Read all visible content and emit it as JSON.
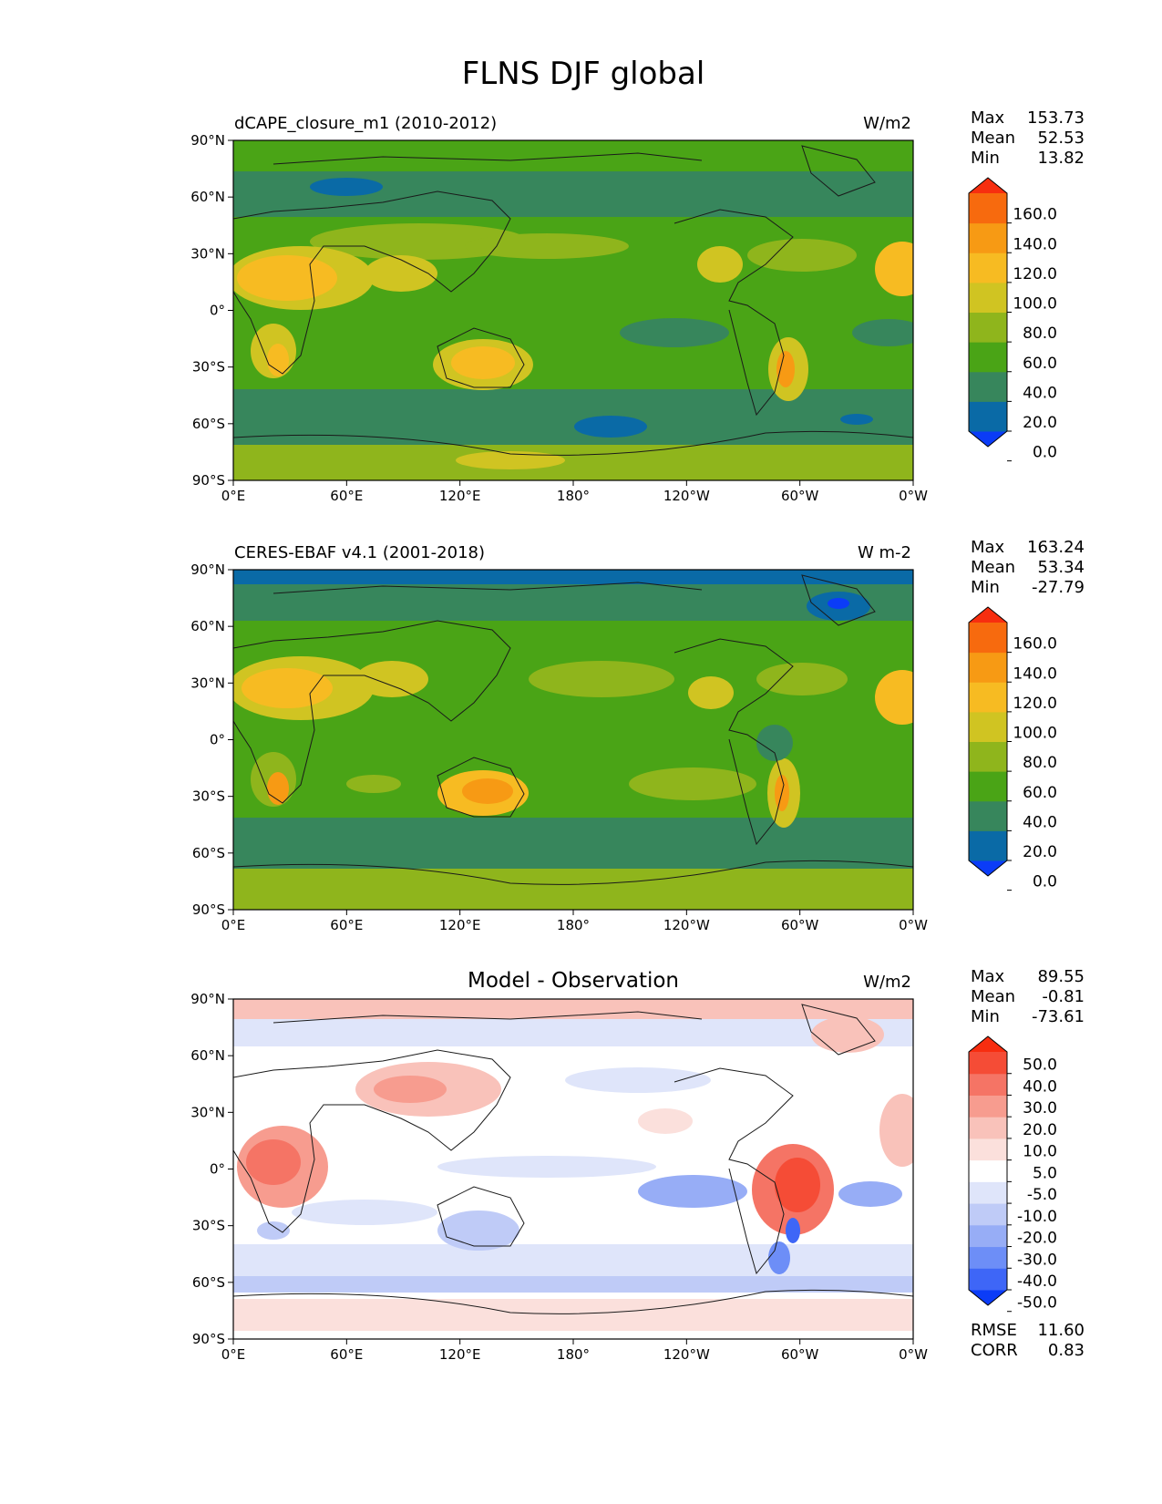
{
  "figure": {
    "title": "FLNS DJF global"
  },
  "axes": {
    "lat_ticks": [
      "90°N",
      "60°N",
      "30°N",
      "0°",
      "30°S",
      "60°S",
      "90°S"
    ],
    "lon_ticks": [
      "0°E",
      "60°E",
      "120°E",
      "180°",
      "120°W",
      "60°W",
      "0°W"
    ]
  },
  "panels": [
    {
      "id": "model",
      "left_title": "dCAPE_closure_m1 (2010-2012)",
      "center_title": "",
      "units": "W/m2",
      "stats": [
        {
          "label": "Max",
          "value": "153.73"
        },
        {
          "label": "Mean",
          "value": "52.53"
        },
        {
          "label": "Min",
          "value": "13.82"
        }
      ],
      "colorbar": {
        "ticks": [
          "160.0",
          "140.0",
          "120.0",
          "100.0",
          "80.0",
          "60.0",
          "40.0",
          "20.0",
          "0.0"
        ],
        "colors": [
          "#0b3cf7",
          "#0a6aa6",
          "#37865c",
          "#4aa416",
          "#8fb51c",
          "#d0c422",
          "#f7bb22",
          "#f79a14",
          "#f76a0e",
          "#f72e0f"
        ]
      }
    },
    {
      "id": "obs",
      "left_title": "CERES-EBAF v4.1 (2001-2018)",
      "center_title": "",
      "units": "W m-2",
      "stats": [
        {
          "label": "Max",
          "value": "163.24"
        },
        {
          "label": "Mean",
          "value": "53.34"
        },
        {
          "label": "Min",
          "value": "-27.79"
        }
      ],
      "colorbar": {
        "ticks": [
          "160.0",
          "140.0",
          "120.0",
          "100.0",
          "80.0",
          "60.0",
          "40.0",
          "20.0",
          "0.0"
        ],
        "colors": [
          "#0b3cf7",
          "#0a6aa6",
          "#37865c",
          "#4aa416",
          "#8fb51c",
          "#d0c422",
          "#f7bb22",
          "#f79a14",
          "#f76a0e",
          "#f72e0f"
        ]
      }
    },
    {
      "id": "diff",
      "left_title": "",
      "center_title": "Model - Observation",
      "units": "W/m2",
      "stats": [
        {
          "label": "Max",
          "value": "89.55"
        },
        {
          "label": "Mean",
          "value": "-0.81"
        },
        {
          "label": "Min",
          "value": "-73.61"
        }
      ],
      "extra_stats": [
        {
          "label": "RMSE",
          "value": "11.60"
        },
        {
          "label": "CORR",
          "value": "0.83"
        }
      ],
      "colorbar": {
        "ticks": [
          "50.0",
          "40.0",
          "30.0",
          "20.0",
          "10.0",
          "5.0",
          "-5.0",
          "-10.0",
          "-20.0",
          "-30.0",
          "-40.0",
          "-50.0"
        ],
        "colors": [
          "#0b3cf7",
          "#3e66f7",
          "#6d8ef7",
          "#97adf6",
          "#bfcbf7",
          "#dfe5fa",
          "#ffffff",
          "#fbe0dc",
          "#f9c2ba",
          "#f79c8f",
          "#f57465",
          "#f54c36",
          "#f72d10"
        ]
      }
    }
  ],
  "palette": {
    "seq_ocean_mid": "#4aa416",
    "seq_ocean_low": "#37865c",
    "diff_red": "#f57465",
    "diff_blue": "#97adf6"
  }
}
